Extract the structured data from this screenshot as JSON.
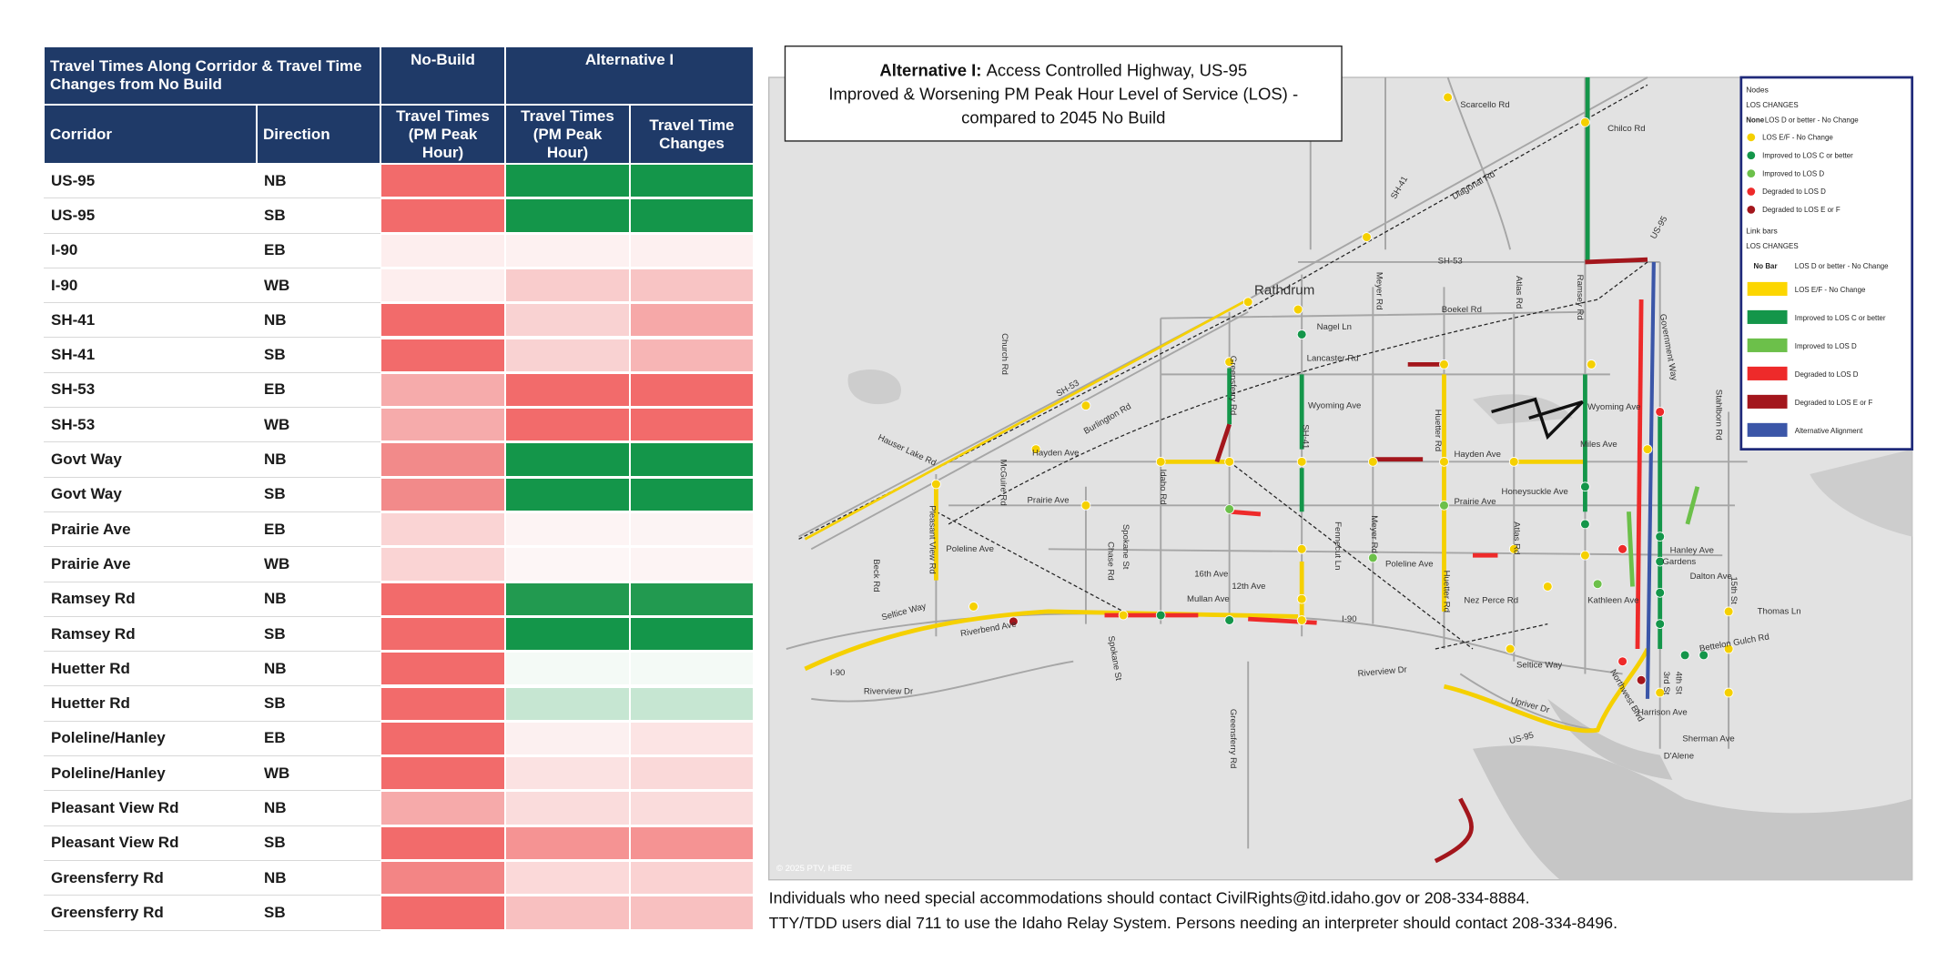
{
  "table": {
    "header": {
      "title": "Travel Times Along Corridor & Travel Time Changes from No Build",
      "no_build": "No-Build",
      "alternative": "Alternative I",
      "corridor": "Corridor",
      "direction": "Direction",
      "no_build_tt": "Travel Times (PM Peak Hour)",
      "alt_tt": "Travel Times (PM Peak Hour)",
      "alt_change": "Travel Time Changes"
    },
    "rows": [
      {
        "corridor": "US-95",
        "direction": "NB",
        "colors": [
          "#f26b6b",
          "#14964a",
          "#14964a"
        ]
      },
      {
        "corridor": "US-95",
        "direction": "SB",
        "colors": [
          "#f26b6b",
          "#14964a",
          "#14964a"
        ]
      },
      {
        "corridor": "I-90",
        "direction": "EB",
        "colors": [
          "#fdeeee",
          "#fdf1f1",
          "#fdf0f0"
        ]
      },
      {
        "corridor": "I-90",
        "direction": "WB",
        "colors": [
          "#fdeeee",
          "#f9cccc",
          "#f8c4c4"
        ]
      },
      {
        "corridor": "SH-41",
        "direction": "NB",
        "colors": [
          "#f26b6b",
          "#f9d2d2",
          "#f6a8a8"
        ]
      },
      {
        "corridor": "SH-41",
        "direction": "SB",
        "colors": [
          "#f26b6b",
          "#f9d2d2",
          "#f7b5b5"
        ]
      },
      {
        "corridor": "SH-53",
        "direction": "EB",
        "colors": [
          "#f6abab",
          "#f26b6b",
          "#f26b6b"
        ]
      },
      {
        "corridor": "SH-53",
        "direction": "WB",
        "colors": [
          "#f6abab",
          "#f26b6b",
          "#f26b6b"
        ]
      },
      {
        "corridor": "Govt Way",
        "direction": "NB",
        "colors": [
          "#f28a8a",
          "#14964a",
          "#14964a"
        ]
      },
      {
        "corridor": "Govt Way",
        "direction": "SB",
        "colors": [
          "#f28a8a",
          "#14964a",
          "#14964a"
        ]
      },
      {
        "corridor": "Prairie Ave",
        "direction": "EB",
        "colors": [
          "#fad4d4",
          "#fdf4f4",
          "#fcf4f4"
        ]
      },
      {
        "corridor": "Prairie Ave",
        "direction": "WB",
        "colors": [
          "#fad4d4",
          "#fdf6f6",
          "#fdf4f4"
        ]
      },
      {
        "corridor": "Ramsey Rd",
        "direction": "NB",
        "colors": [
          "#f26b6b",
          "#229a50",
          "#229a50"
        ]
      },
      {
        "corridor": "Ramsey Rd",
        "direction": "SB",
        "colors": [
          "#f26b6b",
          "#14964a",
          "#14964a"
        ]
      },
      {
        "corridor": "Huetter Rd",
        "direction": "NB",
        "colors": [
          "#f26b6b",
          "#f4faf6",
          "#f4faf6"
        ]
      },
      {
        "corridor": "Huetter Rd",
        "direction": "SB",
        "colors": [
          "#f26b6b",
          "#c6e6d2",
          "#c6e6d2"
        ]
      },
      {
        "corridor": "Poleline/Hanley",
        "direction": "EB",
        "colors": [
          "#f26b6b",
          "#fcf0f0",
          "#fce4e4"
        ]
      },
      {
        "corridor": "Poleline/Hanley",
        "direction": "WB",
        "colors": [
          "#f26b6b",
          "#fbe2e2",
          "#fad9d9"
        ]
      },
      {
        "corridor": "Pleasant View Rd",
        "direction": "NB",
        "colors": [
          "#f6aaaa",
          "#fadcdc",
          "#fadcdc"
        ]
      },
      {
        "corridor": "Pleasant View Rd",
        "direction": "SB",
        "colors": [
          "#f26b6b",
          "#f59393",
          "#f59393"
        ]
      },
      {
        "corridor": "Greensferry Rd",
        "direction": "NB",
        "colors": [
          "#f38585",
          "#fbd9d9",
          "#fad2d2"
        ]
      },
      {
        "corridor": "Greensferry Rd",
        "direction": "SB",
        "colors": [
          "#f26b6b",
          "#f8c0c0",
          "#f8c0c0"
        ]
      }
    ]
  },
  "map": {
    "title": {
      "bold": "Alternative I:",
      "rest": "Access Controlled Highway, US-95",
      "line2": "Improved & Worsening PM Peak Hour Level of Service (LOS) -",
      "line3": "compared to 2045 No Build"
    },
    "labels": [
      "Scarcello Rd",
      "Chilco Rd",
      "SH-41",
      "Diagonal Rd",
      "SH-53",
      "US-95",
      "Rathdrum",
      "Boekel Rd",
      "Nagel Ln",
      "Lancaster Rd",
      "Church Rd",
      "SH-53",
      "Wyoming Ave",
      "Wyoming Ave",
      "Burlington Rd",
      "Hauser Lake Rd",
      "Hayden Ave",
      "Hayden Ave",
      "Miles Ave",
      "Prairie Ave",
      "Prairie Ave",
      "Honeysuckle Ave",
      "Poleline Ave",
      "Poleline Ave",
      "16th Ave",
      "12th Ave",
      "Mullan Ave",
      "I-90",
      "Nez Perce Rd",
      "Kathleen Ave",
      "Dalton Ave",
      "Thomas Ln",
      "Seltice Way",
      "Riverbend Ave",
      "Seltice Way",
      "I-90",
      "Riverview Dr",
      "Riverview Dr",
      "Upriver Dr",
      "US-95",
      "Harrison Ave",
      "Sherman Ave",
      "D'Alene",
      "Beck Rd",
      "Pleasant View Rd",
      "McGuire Rd",
      "Chase Rd",
      "Spokane St",
      "Idaho Rd",
      "Greensferry Rd",
      "SH-41",
      "Meyer Rd",
      "Ramsey Rd",
      "Atlas Rd",
      "Huetter Rd",
      "Fennecut Ln",
      "Meyer Rd",
      "Atlas Rd",
      "Huetter Rd",
      "Government Way",
      "Stahlborn Rd",
      "15th St",
      "4th St",
      "3rd St",
      "Greensferry Rd",
      "Spokane St",
      "Gardens",
      "Hanley Ave",
      "Bettelon Gulch Rd",
      "Northwest Blvd",
      "© 2025 PTV, HERE"
    ],
    "legend": {
      "nodes_title": "Nodes",
      "nodes_heading": "LOS CHANGES",
      "nodes_none": "None",
      "nodes_none_text": "LOS D or better - No Change",
      "nodes": [
        {
          "text": "LOS E/F - No Change",
          "color": "#f5d000"
        },
        {
          "text": "Improved to LOS C or better",
          "color": "#14964a"
        },
        {
          "text": "Improved to LOS D",
          "color": "#6cc04a"
        },
        {
          "text": "Degraded to LOS D",
          "color": "#ee2a2a"
        },
        {
          "text": "Degraded to LOS E or F",
          "color": "#a3161c"
        }
      ],
      "links_title": "Link bars",
      "links_heading": "LOS CHANGES",
      "links_none": "No Bar",
      "links_none_text": "LOS D or better - No Change",
      "links": [
        {
          "text": "LOS E/F - No Change",
          "color": "#fcd600"
        },
        {
          "text": "Improved to LOS C or better",
          "color": "#14964a"
        },
        {
          "text": "Improved to LOS D",
          "color": "#6cc04a"
        },
        {
          "text": "Degraded to LOS D",
          "color": "#ee2a2a"
        },
        {
          "text": "Degraded to LOS E or F",
          "color": "#a3161c"
        },
        {
          "text": "Alternative Alignment",
          "color": "#3b56a8"
        }
      ]
    }
  },
  "footer": [
    "Individuals who need special accommodations should contact CivilRights@itd.idaho.gov or 208-334-8884.",
    "TTY/TDD users dial 711 to use the Idaho Relay System. Persons needing an interpreter should contact 208-334-8496."
  ]
}
